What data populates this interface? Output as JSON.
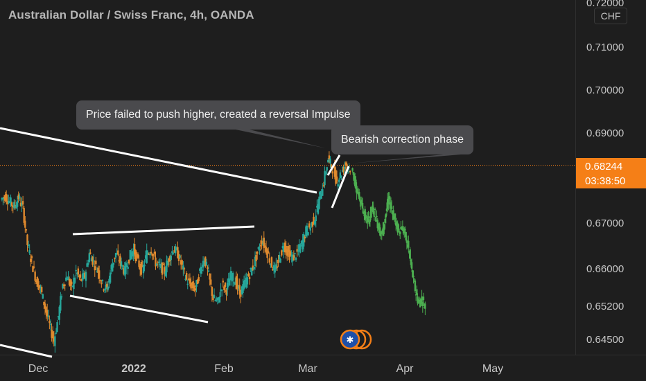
{
  "header": {
    "title": "Australian Dollar / Swiss Franc, 4h, OANDA"
  },
  "price_axis": {
    "currency": "CHF"
  },
  "last_price": {
    "price": "0.68244",
    "countdown": "03:38:50"
  },
  "annotations": [
    {
      "text": "Price failed to push higher, created a reversal Impulse"
    },
    {
      "text": "Bearish correction phase"
    }
  ],
  "colors": {
    "background": "#1e1e1e",
    "candle_up": "#26a69a",
    "candle_down": "#e08a2e",
    "projection": "#4caf50",
    "trendline": "#ffffff",
    "last_price": "#f57f17",
    "callout": "#4a4a4d"
  },
  "chart_data": {
    "type": "line",
    "y_ticks": [
      "0.72000",
      "0.71000",
      "0.70000",
      "0.69000",
      "0.67000",
      "0.66000",
      "0.65200",
      "0.64500"
    ],
    "x_ticks": [
      "Dec",
      "2022",
      "Feb",
      "Mar",
      "Apr",
      "May"
    ],
    "ylim": [
      0.6405,
      0.7205
    ],
    "series": [
      {
        "values": [
          0.676,
          0.6768,
          0.6755,
          0.6745,
          0.6765,
          0.674,
          0.666,
          0.662,
          0.658,
          0.656,
          0.652,
          0.648,
          0.6445,
          0.65,
          0.657,
          0.659,
          0.656,
          0.66,
          0.658,
          0.659,
          0.664,
          0.662,
          0.66,
          0.657,
          0.656,
          0.661,
          0.664,
          0.662,
          0.66,
          0.663,
          0.665,
          0.662,
          0.66,
          0.664,
          0.665,
          0.662,
          0.661,
          0.66,
          0.663,
          0.665,
          0.664,
          0.661,
          0.658,
          0.657,
          0.656,
          0.66,
          0.663,
          0.659,
          0.654,
          0.653,
          0.657,
          0.656,
          0.659,
          0.658,
          0.655,
          0.657,
          0.659,
          0.661,
          0.664,
          0.667,
          0.665,
          0.662,
          0.66,
          0.663,
          0.666,
          0.664,
          0.663,
          0.664,
          0.666,
          0.669,
          0.67,
          0.672,
          0.676,
          0.68,
          0.685,
          0.683,
          0.68,
          0.682,
          0.684,
          0.683
        ]
      },
      {
        "values": [
          0.683,
          0.68,
          0.677,
          0.675,
          0.672,
          0.671,
          0.674,
          0.673,
          0.67,
          0.668,
          0.672,
          0.676,
          0.674,
          0.671,
          0.669,
          0.67,
          0.668,
          0.665,
          0.66,
          0.656,
          0.653,
          0.654,
          0.652
        ]
      }
    ]
  }
}
